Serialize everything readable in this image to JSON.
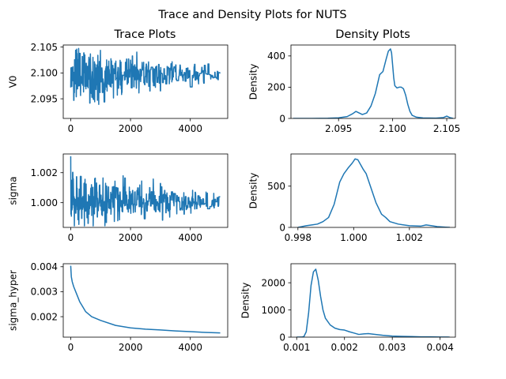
{
  "figure": {
    "suptitle": "Trace and Density Plots for NUTS",
    "col_titles": [
      "Trace Plots",
      "Density Plots"
    ]
  },
  "colors": {
    "line": "#1f77b4",
    "axis": "#000000",
    "background": "#ffffff"
  },
  "chart_data": [
    {
      "type": "line",
      "title": "Trace Plots",
      "xlabel": "",
      "ylabel": "V0",
      "xlim": [
        -250,
        5250
      ],
      "ylim": [
        2.0912,
        2.1054
      ],
      "xticks": [
        0,
        2000,
        4000
      ],
      "xtick_labels": [
        "0",
        "2000",
        "4000"
      ],
      "yticks": [
        2.095,
        2.1,
        2.105
      ],
      "ytick_labels": [
        "2.095",
        "2.100",
        "2.105"
      ],
      "grid": false,
      "trace": {
        "n": 5000,
        "center": 2.0998,
        "early_spread": 0.0032,
        "late_spread": 0.0008,
        "start": 2.0972,
        "min": 2.0915,
        "max": 2.1052,
        "seed": 11
      }
    },
    {
      "type": "line",
      "title": "Density Plots",
      "xlabel": "",
      "ylabel": "Density",
      "xlim": [
        2.0906,
        2.1058
      ],
      "ylim": [
        0,
        470
      ],
      "xticks": [
        2.095,
        2.1,
        2.105
      ],
      "xtick_labels": [
        "2.095",
        "2.100",
        "2.105"
      ],
      "yticks": [
        0,
        200,
        400
      ],
      "ytick_labels": [
        "0",
        "200",
        "400"
      ],
      "grid": false,
      "x": [
        2.0908,
        2.0925,
        2.094,
        2.095,
        2.0958,
        2.0963,
        2.0966,
        2.0969,
        2.0972,
        2.0976,
        2.098,
        2.0984,
        2.0988,
        2.0991,
        2.0994,
        2.0996,
        2.0998,
        2.0999,
        2.1,
        2.1001,
        2.1002,
        2.1004,
        2.1006,
        2.1008,
        2.101,
        2.1012,
        2.1014,
        2.1016,
        2.1018,
        2.1022,
        2.1028,
        2.104,
        2.1047,
        2.105,
        2.1053,
        2.1056
      ],
      "y": [
        0,
        0,
        1,
        4,
        12,
        30,
        45,
        35,
        25,
        35,
        80,
        160,
        280,
        300,
        380,
        430,
        445,
        420,
        340,
        260,
        210,
        195,
        200,
        200,
        190,
        150,
        90,
        45,
        20,
        8,
        3,
        2,
        6,
        15,
        5,
        0
      ]
    },
    {
      "type": "line",
      "title": "",
      "xlabel": "",
      "ylabel": "sigma",
      "xlim": [
        -250,
        5250
      ],
      "ylim": [
        0.99835,
        1.00325
      ],
      "xticks": [
        0,
        2000,
        4000
      ],
      "xtick_labels": [
        "0",
        "2000",
        "4000"
      ],
      "yticks": [
        1.0,
        1.002
      ],
      "ytick_labels": [
        "1.000",
        "1.002"
      ],
      "grid": false,
      "trace": {
        "n": 5000,
        "center": 1.0001,
        "early_spread": 0.0011,
        "late_spread": 0.0003,
        "start": 1.0031,
        "min": 0.99845,
        "max": 1.0031,
        "seed": 23
      }
    },
    {
      "type": "line",
      "title": "",
      "xlabel": "",
      "ylabel": "Density",
      "xlim": [
        0.99775,
        1.00365
      ],
      "ylim": [
        0,
        890
      ],
      "xticks": [
        0.998,
        1.0,
        1.002
      ],
      "xtick_labels": [
        "0.998",
        "1.000",
        "1.002"
      ],
      "yticks": [
        0,
        500
      ],
      "ytick_labels": [
        "0",
        "500"
      ],
      "grid": false,
      "x": [
        0.998,
        0.9983,
        0.9985,
        0.9987,
        0.9989,
        0.9991,
        0.9993,
        0.9995,
        0.99965,
        0.9998,
        0.99995,
        1.00005,
        1.00015,
        1.00025,
        1.00035,
        1.00045,
        1.0006,
        1.0008,
        1.001,
        1.00115,
        1.0013,
        1.0016,
        1.002,
        1.0024,
        1.0026,
        1.0028,
        1.003,
        1.0033,
        1.00345
      ],
      "y": [
        0,
        20,
        30,
        40,
        70,
        120,
        280,
        550,
        650,
        720,
        780,
        830,
        820,
        760,
        700,
        650,
        500,
        300,
        160,
        120,
        70,
        40,
        20,
        15,
        30,
        20,
        10,
        3,
        0
      ]
    },
    {
      "type": "line",
      "title": "",
      "xlabel": "",
      "ylabel": "sigma_hyper",
      "xlim": [
        -250,
        5250
      ],
      "ylim": [
        0.00118,
        0.00412
      ],
      "xticks": [
        0,
        2000,
        4000
      ],
      "xtick_labels": [
        "0",
        "2000",
        "4000"
      ],
      "yticks": [
        0.002,
        0.003,
        0.004
      ],
      "ytick_labels": [
        "0.002",
        "0.003",
        "0.004"
      ],
      "grid": false,
      "x": [
        0,
        20,
        50,
        100,
        200,
        300,
        400,
        500,
        700,
        1000,
        1500,
        2000,
        2500,
        3000,
        3500,
        4000,
        4500,
        5000
      ],
      "y": [
        0.00404,
        0.0036,
        0.0034,
        0.0032,
        0.0029,
        0.0026,
        0.0024,
        0.0022,
        0.002,
        0.00185,
        0.00165,
        0.00155,
        0.0015,
        0.00147,
        0.00143,
        0.0014,
        0.00137,
        0.00135
      ]
    },
    {
      "type": "line",
      "title": "",
      "xlabel": "",
      "ylabel": "Density",
      "xlim": [
        0.00088,
        0.00432
      ],
      "ylim": [
        0,
        2700
      ],
      "xticks": [
        0.001,
        0.002,
        0.003,
        0.004
      ],
      "xtick_labels": [
        "0.001",
        "0.002",
        "0.003",
        "0.004"
      ],
      "yticks": [
        0,
        1000,
        2000
      ],
      "ytick_labels": [
        "0",
        "1000",
        "2000"
      ],
      "grid": false,
      "x": [
        0.001,
        0.0011,
        0.00115,
        0.0012,
        0.00125,
        0.0013,
        0.00135,
        0.0014,
        0.00145,
        0.0015,
        0.00155,
        0.0016,
        0.0017,
        0.0018,
        0.0019,
        0.002,
        0.0021,
        0.0022,
        0.0023,
        0.0024,
        0.0025,
        0.0026,
        0.0028,
        0.003,
        0.0032,
        0.0034,
        0.0036,
        0.0038,
        0.004,
        0.00415,
        0.0042
      ],
      "y": [
        0,
        2,
        20,
        200,
        900,
        1900,
        2400,
        2500,
        2100,
        1500,
        1000,
        700,
        450,
        330,
        280,
        260,
        200,
        150,
        100,
        120,
        130,
        110,
        70,
        40,
        30,
        20,
        10,
        10,
        5,
        2,
        0
      ]
    }
  ]
}
